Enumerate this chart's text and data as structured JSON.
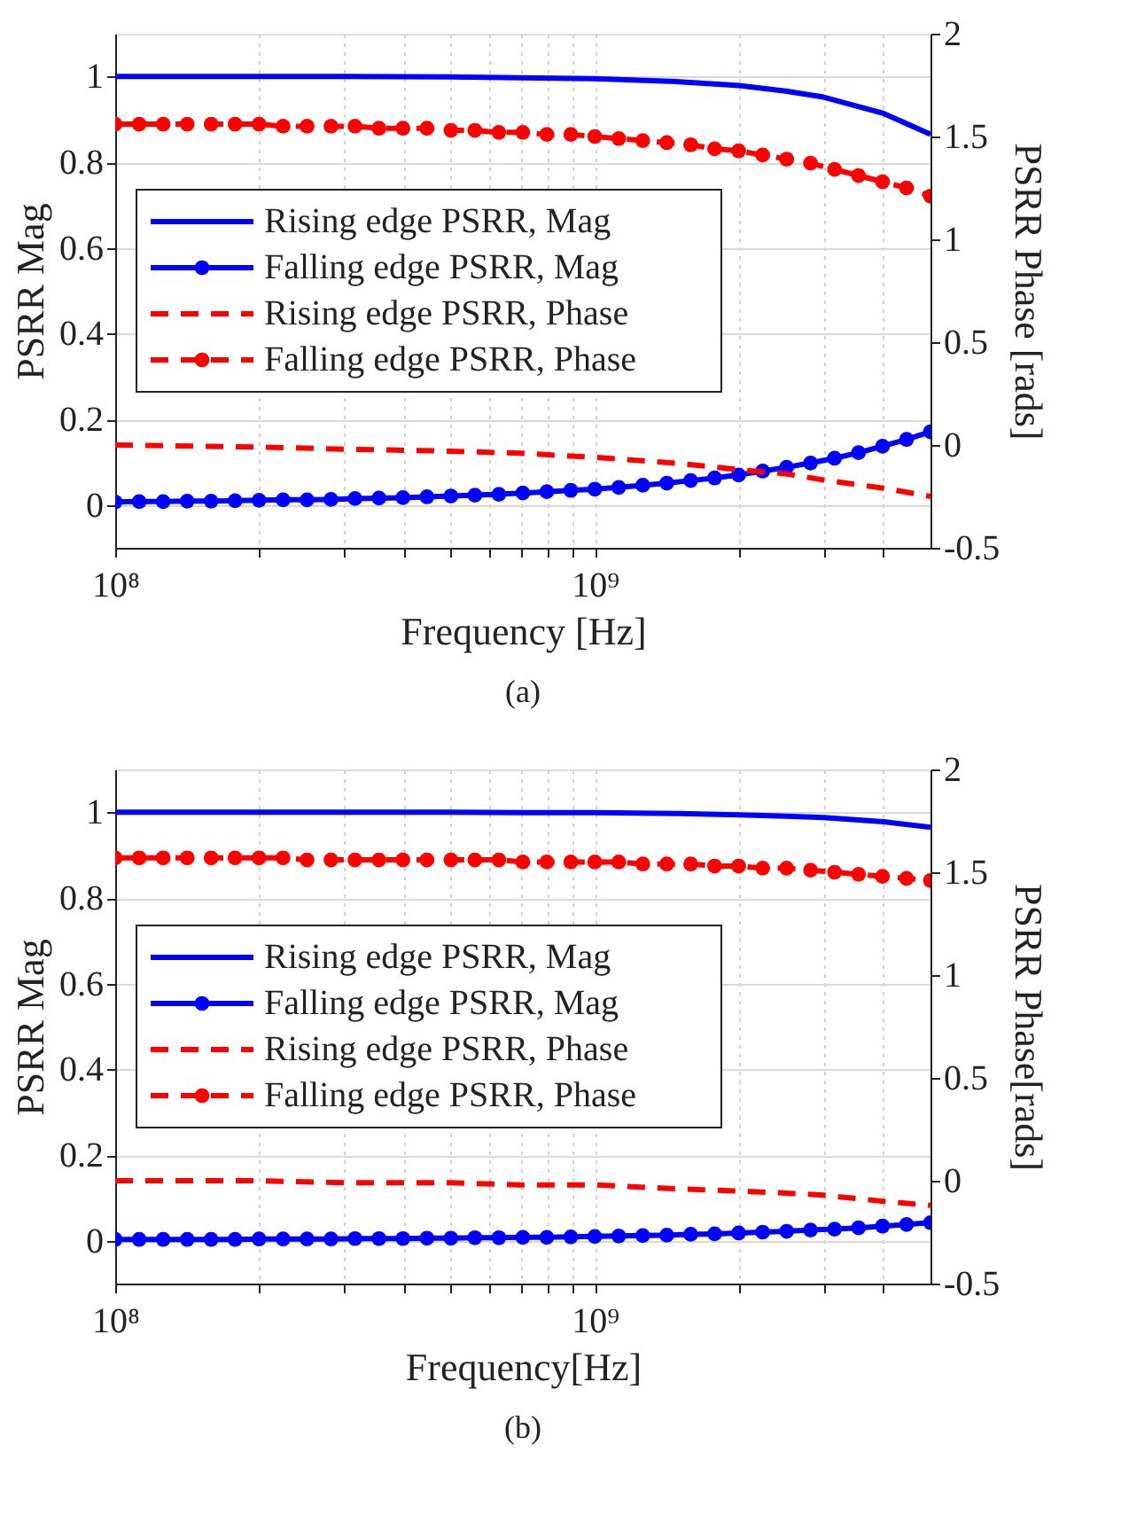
{
  "chart_data": [
    {
      "type": "line",
      "xlabel": "Frequency [Hz]",
      "ylabel": "PSRR Mag",
      "y2label": "PSRR Phase [rads]",
      "log": "x",
      "grid": true,
      "legend": "left",
      "xlim": [
        100000000.0,
        5012000000.0
      ],
      "ylim": [
        -0.1,
        1.1
      ],
      "y2lim": [
        -0.5,
        2
      ],
      "xticks": [
        {
          "value": 100000000.0,
          "label": "10⁸"
        },
        {
          "value": 200000000.0,
          "label": null
        },
        {
          "value": 300000000.0,
          "label": null
        },
        {
          "value": 400000000.0,
          "label": null
        },
        {
          "value": 500000000.0,
          "label": null
        },
        {
          "value": 600000000.0,
          "label": null
        },
        {
          "value": 700000000.0,
          "label": null
        },
        {
          "value": 800000000.0,
          "label": null
        },
        {
          "value": 900000000.0,
          "label": null
        },
        {
          "value": 1000000000.0,
          "label": "10⁹"
        },
        {
          "value": 2000000000.0,
          "label": null
        },
        {
          "value": 3000000000.0,
          "label": null
        },
        {
          "value": 4000000000.0,
          "label": null
        }
      ],
      "yticks": [
        0,
        0.2,
        0.4,
        0.6,
        0.8,
        1
      ],
      "y2ticks": [
        -0.5,
        0,
        0.5,
        1,
        1.5,
        2
      ],
      "annotations": [
        "(a)"
      ],
      "series": [
        {
          "name": "Rising edge PSRR, Mag",
          "color": "#0000ff",
          "line_style": "solid",
          "marker": "none",
          "x": [
            100000000.0,
            200000000.0,
            300000000.0,
            500000000.0,
            700000000.0,
            1000000000.0,
            1500000000.0,
            2000000000.0,
            2500000000.0,
            3000000000.0,
            4000000000.0,
            5012000000.0
          ],
          "values": [
            1.0,
            1.0,
            1.0,
            0.999,
            0.997,
            0.995,
            0.988,
            0.979,
            0.966,
            0.952,
            0.914,
            0.865
          ]
        },
        {
          "name": "Falling edge PSRR, Mag",
          "color": "#0000ff",
          "line_style": "solid",
          "marker": "circle",
          "x": [
            100000000.0,
            112200000.0,
            125900000.0,
            141300000.0,
            158500000.0,
            177800000.0,
            199500000.0,
            223900000.0,
            251200000.0,
            281800000.0,
            316200000.0,
            354800000.0,
            398100000.0,
            446700000.0,
            501200000.0,
            562300000.0,
            631000000.0,
            707900000.0,
            794300000.0,
            891300000.0,
            1000000000.0,
            1122000000.0,
            1259000000.0,
            1413000000.0,
            1585000000.0,
            1778000000.0,
            1995000000.0,
            2239000000.0,
            2512000000.0,
            2818000000.0,
            3162000000.0,
            3548000000.0,
            3981000000.0,
            4467000000.0,
            5012000000.0
          ],
          "values": [
            0.007,
            0.008,
            0.008,
            0.009,
            0.009,
            0.01,
            0.011,
            0.012,
            0.012,
            0.013,
            0.015,
            0.016,
            0.017,
            0.019,
            0.021,
            0.023,
            0.025,
            0.028,
            0.031,
            0.034,
            0.037,
            0.041,
            0.046,
            0.051,
            0.057,
            0.063,
            0.07,
            0.079,
            0.088,
            0.098,
            0.109,
            0.122,
            0.137,
            0.153,
            0.171
          ]
        },
        {
          "name": "Rising edge PSRR, Phase",
          "color": "#ff0000",
          "line_style": "dashed",
          "marker": "none",
          "axis": "y2",
          "x": [
            100000000.0,
            200000000.0,
            300000000.0,
            500000000.0,
            700000000.0,
            1000000000.0,
            1500000000.0,
            2000000000.0,
            2500000000.0,
            3000000000.0,
            4000000000.0,
            5012000000.0
          ],
          "values": [
            0.0,
            -0.01,
            -0.02,
            -0.03,
            -0.04,
            -0.06,
            -0.09,
            -0.12,
            -0.14,
            -0.17,
            -0.21,
            -0.25
          ]
        },
        {
          "name": "Falling edge PSRR, Phase",
          "color": "#ff0000",
          "line_style": "dashed",
          "marker": "circle",
          "axis": "y2",
          "x": [
            100000000.0,
            112200000.0,
            125900000.0,
            141300000.0,
            158500000.0,
            177800000.0,
            199500000.0,
            223900000.0,
            251200000.0,
            281800000.0,
            316200000.0,
            354800000.0,
            398100000.0,
            446700000.0,
            501200000.0,
            562300000.0,
            631000000.0,
            707900000.0,
            794300000.0,
            891300000.0,
            1000000000.0,
            1122000000.0,
            1259000000.0,
            1413000000.0,
            1585000000.0,
            1778000000.0,
            1995000000.0,
            2239000000.0,
            2512000000.0,
            2818000000.0,
            3162000000.0,
            3548000000.0,
            3981000000.0,
            4467000000.0,
            5012000000.0
          ],
          "values": [
            1.56,
            1.56,
            1.56,
            1.56,
            1.56,
            1.56,
            1.56,
            1.55,
            1.55,
            1.55,
            1.55,
            1.54,
            1.54,
            1.54,
            1.53,
            1.53,
            1.52,
            1.52,
            1.51,
            1.51,
            1.5,
            1.49,
            1.48,
            1.47,
            1.46,
            1.44,
            1.43,
            1.41,
            1.39,
            1.37,
            1.34,
            1.31,
            1.28,
            1.25,
            1.21
          ]
        }
      ]
    },
    {
      "type": "line",
      "xlabel": "Frequency[Hz]",
      "ylabel": "PSRR Mag",
      "y2label": "PSRR Phase[rads]",
      "log": "x",
      "grid": true,
      "legend": "left",
      "xlim": [
        100000000.0,
        5012000000.0
      ],
      "ylim": [
        -0.1,
        1.1
      ],
      "y2lim": [
        -0.5,
        2
      ],
      "xticks": [
        {
          "value": 100000000.0,
          "label": "10⁸"
        },
        {
          "value": 200000000.0,
          "label": null
        },
        {
          "value": 300000000.0,
          "label": null
        },
        {
          "value": 400000000.0,
          "label": null
        },
        {
          "value": 500000000.0,
          "label": null
        },
        {
          "value": 600000000.0,
          "label": null
        },
        {
          "value": 700000000.0,
          "label": null
        },
        {
          "value": 800000000.0,
          "label": null
        },
        {
          "value": 900000000.0,
          "label": null
        },
        {
          "value": 1000000000.0,
          "label": "10⁹"
        },
        {
          "value": 2000000000.0,
          "label": null
        },
        {
          "value": 3000000000.0,
          "label": null
        },
        {
          "value": 4000000000.0,
          "label": null
        }
      ],
      "yticks": [
        0,
        0.2,
        0.4,
        0.6,
        0.8,
        1
      ],
      "y2ticks": [
        -0.5,
        0,
        0.5,
        1,
        1.5,
        2
      ],
      "annotations": [
        "(b)"
      ],
      "series": [
        {
          "name": "Rising edge PSRR, Mag",
          "color": "#0000ff",
          "line_style": "solid",
          "marker": "none",
          "x": [
            100000000.0,
            200000000.0,
            300000000.0,
            500000000.0,
            700000000.0,
            1000000000.0,
            1500000000.0,
            2000000000.0,
            2500000000.0,
            3000000000.0,
            4000000000.0,
            5012000000.0
          ],
          "values": [
            1.0,
            1.0,
            1.0,
            1.0,
            0.999,
            0.999,
            0.997,
            0.994,
            0.991,
            0.988,
            0.978,
            0.965
          ]
        },
        {
          "name": "Falling edge PSRR, Mag",
          "color": "#0000ff",
          "line_style": "solid",
          "marker": "circle",
          "x": [
            100000000.0,
            112200000.0,
            125900000.0,
            141300000.0,
            158500000.0,
            177800000.0,
            199500000.0,
            223900000.0,
            251200000.0,
            281800000.0,
            316200000.0,
            354800000.0,
            398100000.0,
            446700000.0,
            501200000.0,
            562300000.0,
            631000000.0,
            707900000.0,
            794300000.0,
            891300000.0,
            1000000000.0,
            1122000000.0,
            1259000000.0,
            1413000000.0,
            1585000000.0,
            1778000000.0,
            1995000000.0,
            2239000000.0,
            2512000000.0,
            2818000000.0,
            3162000000.0,
            3548000000.0,
            3981000000.0,
            4467000000.0,
            5012000000.0
          ],
          "values": [
            0.003,
            0.003,
            0.003,
            0.003,
            0.003,
            0.003,
            0.004,
            0.004,
            0.004,
            0.004,
            0.005,
            0.005,
            0.005,
            0.006,
            0.006,
            0.007,
            0.007,
            0.008,
            0.008,
            0.009,
            0.01,
            0.011,
            0.012,
            0.013,
            0.015,
            0.016,
            0.018,
            0.02,
            0.022,
            0.025,
            0.027,
            0.03,
            0.034,
            0.038,
            0.042
          ]
        },
        {
          "name": "Rising edge PSRR, Phase",
          "color": "#ff0000",
          "line_style": "dashed",
          "marker": "none",
          "axis": "y2",
          "x": [
            100000000.0,
            200000000.0,
            300000000.0,
            500000000.0,
            700000000.0,
            1000000000.0,
            1500000000.0,
            2000000000.0,
            2500000000.0,
            3000000000.0,
            4000000000.0,
            5012000000.0
          ],
          "values": [
            0.0,
            0.0,
            -0.01,
            -0.01,
            -0.02,
            -0.02,
            -0.04,
            -0.05,
            -0.06,
            -0.07,
            -0.1,
            -0.12
          ]
        },
        {
          "name": "Falling edge PSRR, Phase",
          "color": "#ff0000",
          "line_style": "dashed",
          "marker": "circle",
          "axis": "y2",
          "x": [
            100000000.0,
            112200000.0,
            125900000.0,
            141300000.0,
            158500000.0,
            177800000.0,
            199500000.0,
            223900000.0,
            251200000.0,
            281800000.0,
            316200000.0,
            354800000.0,
            398100000.0,
            446700000.0,
            501200000.0,
            562300000.0,
            631000000.0,
            707900000.0,
            794300000.0,
            891300000.0,
            1000000000.0,
            1122000000.0,
            1259000000.0,
            1413000000.0,
            1585000000.0,
            1778000000.0,
            1995000000.0,
            2239000000.0,
            2512000000.0,
            2818000000.0,
            3162000000.0,
            3548000000.0,
            3981000000.0,
            4467000000.0,
            5012000000.0
          ],
          "values": [
            1.57,
            1.57,
            1.57,
            1.57,
            1.57,
            1.57,
            1.57,
            1.57,
            1.56,
            1.56,
            1.56,
            1.56,
            1.56,
            1.56,
            1.56,
            1.56,
            1.56,
            1.55,
            1.55,
            1.55,
            1.55,
            1.55,
            1.54,
            1.54,
            1.54,
            1.53,
            1.53,
            1.52,
            1.52,
            1.51,
            1.5,
            1.49,
            1.48,
            1.47,
            1.46
          ]
        }
      ]
    }
  ]
}
